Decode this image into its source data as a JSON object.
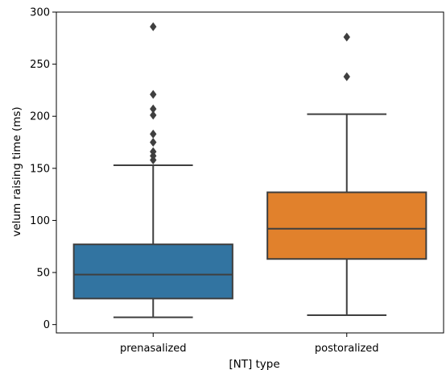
{
  "chart_data": {
    "type": "box",
    "xlabel": "[NT] type",
    "ylabel": "velum raising time (ms)",
    "ylim": [
      -8,
      300
    ],
    "yticks": [
      0,
      50,
      100,
      150,
      200,
      250,
      300
    ],
    "grid": false,
    "legend": "none",
    "categories": [
      "prenasalized",
      "postoralized"
    ],
    "boxes": [
      {
        "category": "prenasalized",
        "color": "#3274a1",
        "whisker_low": 7,
        "q1": 25,
        "median": 48,
        "q3": 77,
        "whisker_high": 153,
        "outliers": [
          158,
          162,
          166,
          175,
          183,
          201,
          207,
          221,
          286
        ]
      },
      {
        "category": "postoralized",
        "color": "#e1812c",
        "whisker_low": 9,
        "q1": 63,
        "median": 92,
        "q3": 127,
        "whisker_high": 202,
        "outliers": [
          238,
          276
        ]
      }
    ],
    "line_color": "#3f3f3f"
  }
}
